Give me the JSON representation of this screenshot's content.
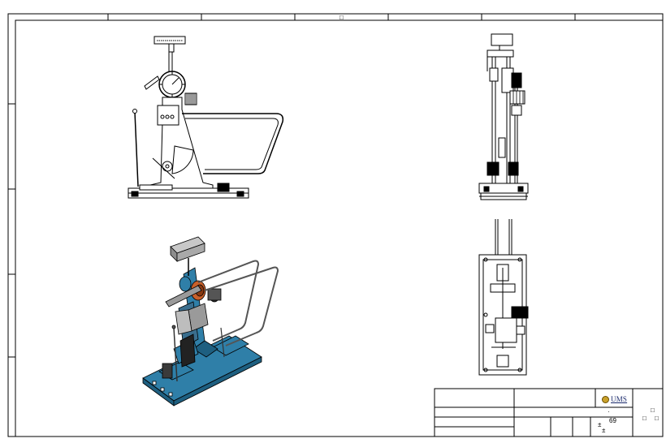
{
  "drawing": {
    "title_block": {
      "logo_text": "UMS",
      "sheet_number": "69",
      "mark_dot": "·",
      "mark_symbols": [
        "±",
        "±"
      ]
    },
    "border_marks": {
      "top_center": "□",
      "right_marks": [
        "□",
        "□",
        "□"
      ]
    },
    "colors": {
      "machine_blue": "#2f7fa8",
      "machine_dark": "#1e5f80",
      "accent_orange": "#c8602a",
      "line": "#000000"
    }
  }
}
